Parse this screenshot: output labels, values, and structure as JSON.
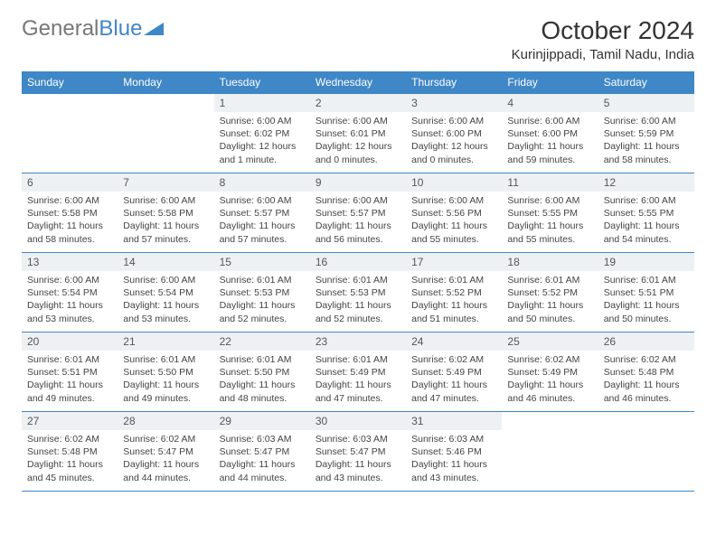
{
  "brand": {
    "part1": "General",
    "part2": "Blue"
  },
  "title": "October 2024",
  "location": "Kurinjippadi, Tamil Nadu, India",
  "colors": {
    "header_bg": "#3f87c7",
    "header_text": "#ffffff",
    "daynum_bg": "#eef1f3",
    "border": "#3f87c7",
    "text": "#444444",
    "background": "#ffffff"
  },
  "weekdays": [
    "Sunday",
    "Monday",
    "Tuesday",
    "Wednesday",
    "Thursday",
    "Friday",
    "Saturday"
  ],
  "weeks": [
    [
      null,
      null,
      {
        "n": "1",
        "sr": "Sunrise: 6:00 AM",
        "ss": "Sunset: 6:02 PM",
        "dl": "Daylight: 12 hours and 1 minute."
      },
      {
        "n": "2",
        "sr": "Sunrise: 6:00 AM",
        "ss": "Sunset: 6:01 PM",
        "dl": "Daylight: 12 hours and 0 minutes."
      },
      {
        "n": "3",
        "sr": "Sunrise: 6:00 AM",
        "ss": "Sunset: 6:00 PM",
        "dl": "Daylight: 12 hours and 0 minutes."
      },
      {
        "n": "4",
        "sr": "Sunrise: 6:00 AM",
        "ss": "Sunset: 6:00 PM",
        "dl": "Daylight: 11 hours and 59 minutes."
      },
      {
        "n": "5",
        "sr": "Sunrise: 6:00 AM",
        "ss": "Sunset: 5:59 PM",
        "dl": "Daylight: 11 hours and 58 minutes."
      }
    ],
    [
      {
        "n": "6",
        "sr": "Sunrise: 6:00 AM",
        "ss": "Sunset: 5:58 PM",
        "dl": "Daylight: 11 hours and 58 minutes."
      },
      {
        "n": "7",
        "sr": "Sunrise: 6:00 AM",
        "ss": "Sunset: 5:58 PM",
        "dl": "Daylight: 11 hours and 57 minutes."
      },
      {
        "n": "8",
        "sr": "Sunrise: 6:00 AM",
        "ss": "Sunset: 5:57 PM",
        "dl": "Daylight: 11 hours and 57 minutes."
      },
      {
        "n": "9",
        "sr": "Sunrise: 6:00 AM",
        "ss": "Sunset: 5:57 PM",
        "dl": "Daylight: 11 hours and 56 minutes."
      },
      {
        "n": "10",
        "sr": "Sunrise: 6:00 AM",
        "ss": "Sunset: 5:56 PM",
        "dl": "Daylight: 11 hours and 55 minutes."
      },
      {
        "n": "11",
        "sr": "Sunrise: 6:00 AM",
        "ss": "Sunset: 5:55 PM",
        "dl": "Daylight: 11 hours and 55 minutes."
      },
      {
        "n": "12",
        "sr": "Sunrise: 6:00 AM",
        "ss": "Sunset: 5:55 PM",
        "dl": "Daylight: 11 hours and 54 minutes."
      }
    ],
    [
      {
        "n": "13",
        "sr": "Sunrise: 6:00 AM",
        "ss": "Sunset: 5:54 PM",
        "dl": "Daylight: 11 hours and 53 minutes."
      },
      {
        "n": "14",
        "sr": "Sunrise: 6:00 AM",
        "ss": "Sunset: 5:54 PM",
        "dl": "Daylight: 11 hours and 53 minutes."
      },
      {
        "n": "15",
        "sr": "Sunrise: 6:01 AM",
        "ss": "Sunset: 5:53 PM",
        "dl": "Daylight: 11 hours and 52 minutes."
      },
      {
        "n": "16",
        "sr": "Sunrise: 6:01 AM",
        "ss": "Sunset: 5:53 PM",
        "dl": "Daylight: 11 hours and 52 minutes."
      },
      {
        "n": "17",
        "sr": "Sunrise: 6:01 AM",
        "ss": "Sunset: 5:52 PM",
        "dl": "Daylight: 11 hours and 51 minutes."
      },
      {
        "n": "18",
        "sr": "Sunrise: 6:01 AM",
        "ss": "Sunset: 5:52 PM",
        "dl": "Daylight: 11 hours and 50 minutes."
      },
      {
        "n": "19",
        "sr": "Sunrise: 6:01 AM",
        "ss": "Sunset: 5:51 PM",
        "dl": "Daylight: 11 hours and 50 minutes."
      }
    ],
    [
      {
        "n": "20",
        "sr": "Sunrise: 6:01 AM",
        "ss": "Sunset: 5:51 PM",
        "dl": "Daylight: 11 hours and 49 minutes."
      },
      {
        "n": "21",
        "sr": "Sunrise: 6:01 AM",
        "ss": "Sunset: 5:50 PM",
        "dl": "Daylight: 11 hours and 49 minutes."
      },
      {
        "n": "22",
        "sr": "Sunrise: 6:01 AM",
        "ss": "Sunset: 5:50 PM",
        "dl": "Daylight: 11 hours and 48 minutes."
      },
      {
        "n": "23",
        "sr": "Sunrise: 6:01 AM",
        "ss": "Sunset: 5:49 PM",
        "dl": "Daylight: 11 hours and 47 minutes."
      },
      {
        "n": "24",
        "sr": "Sunrise: 6:02 AM",
        "ss": "Sunset: 5:49 PM",
        "dl": "Daylight: 11 hours and 47 minutes."
      },
      {
        "n": "25",
        "sr": "Sunrise: 6:02 AM",
        "ss": "Sunset: 5:49 PM",
        "dl": "Daylight: 11 hours and 46 minutes."
      },
      {
        "n": "26",
        "sr": "Sunrise: 6:02 AM",
        "ss": "Sunset: 5:48 PM",
        "dl": "Daylight: 11 hours and 46 minutes."
      }
    ],
    [
      {
        "n": "27",
        "sr": "Sunrise: 6:02 AM",
        "ss": "Sunset: 5:48 PM",
        "dl": "Daylight: 11 hours and 45 minutes."
      },
      {
        "n": "28",
        "sr": "Sunrise: 6:02 AM",
        "ss": "Sunset: 5:47 PM",
        "dl": "Daylight: 11 hours and 44 minutes."
      },
      {
        "n": "29",
        "sr": "Sunrise: 6:03 AM",
        "ss": "Sunset: 5:47 PM",
        "dl": "Daylight: 11 hours and 44 minutes."
      },
      {
        "n": "30",
        "sr": "Sunrise: 6:03 AM",
        "ss": "Sunset: 5:47 PM",
        "dl": "Daylight: 11 hours and 43 minutes."
      },
      {
        "n": "31",
        "sr": "Sunrise: 6:03 AM",
        "ss": "Sunset: 5:46 PM",
        "dl": "Daylight: 11 hours and 43 minutes."
      },
      null,
      null
    ]
  ]
}
